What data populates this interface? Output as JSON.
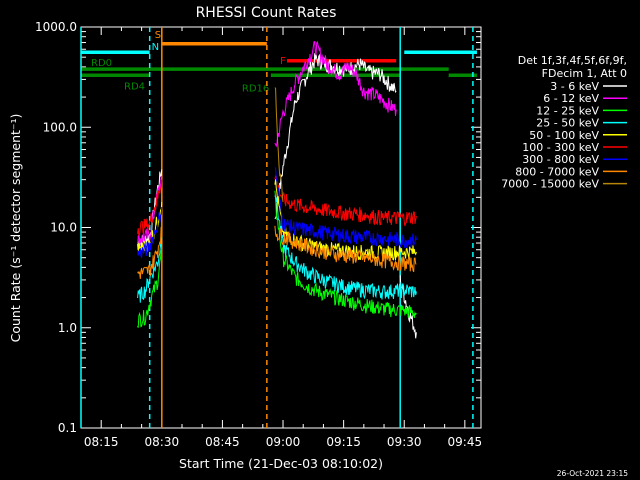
{
  "chart_data": {
    "type": "line",
    "title": "RHESSI Count Rates",
    "xlabel": "Start Time (21-Dec-03 08:10:02)",
    "ylabel": "Count Rate (s⁻¹ detector segment⁻¹)",
    "y_scale": "log",
    "ylim": [
      0.1,
      1000
    ],
    "xlim": [
      "08:10",
      "09:49"
    ],
    "x_ticks": [
      "08:15",
      "08:30",
      "08:45",
      "09:00",
      "09:15",
      "09:30",
      "09:45"
    ],
    "y_ticks": [
      "0.1",
      "1.0",
      "10.0",
      "100.0",
      "1000.0"
    ],
    "timestamp": "26-Oct-2021 23:15",
    "legend": {
      "placement": "right",
      "header_line1": "Det 1f,3f,4f,5f,6f,9f,",
      "header_line2": "FDecim 1, Att 0"
    },
    "series": [
      {
        "name": "3 - 6 keV",
        "color": "#ffffff",
        "segments": [
          [
            [
              "08:24",
              7
            ],
            [
              "08:27",
              8
            ],
            [
              "08:29",
              25
            ],
            [
              "08:30",
              38
            ]
          ],
          [
            [
              "08:58",
              12
            ],
            [
              "09:00",
              40
            ],
            [
              "09:03",
              180
            ],
            [
              "09:06",
              340
            ],
            [
              "09:08",
              480
            ],
            [
              "09:10",
              440
            ],
            [
              "09:13",
              400
            ],
            [
              "09:16",
              380
            ],
            [
              "09:19",
              430
            ],
            [
              "09:21",
              360
            ],
            [
              "09:24",
              340
            ],
            [
              "09:26",
              280
            ],
            [
              "09:28",
              230
            ]
          ],
          [
            [
              "09:29",
              3
            ],
            [
              "09:31",
              1.5
            ],
            [
              "09:33",
              0.9
            ]
          ]
        ]
      },
      {
        "name": "6 - 12 keV",
        "color": "#ff00ff",
        "segments": [
          [
            [
              "08:24",
              7.5
            ],
            [
              "08:27",
              8.5
            ],
            [
              "08:29",
              22
            ],
            [
              "08:30",
              32
            ]
          ],
          [
            [
              "08:58",
              60
            ],
            [
              "09:00",
              140
            ],
            [
              "09:03",
              280
            ],
            [
              "09:06",
              460
            ],
            [
              "09:08",
              650
            ],
            [
              "09:09",
              560
            ],
            [
              "09:11",
              420
            ],
            [
              "09:14",
              340
            ],
            [
              "09:16",
              410
            ],
            [
              "09:18",
              350
            ],
            [
              "09:20",
              230
            ],
            [
              "09:23",
              210
            ],
            [
              "09:26",
              170
            ],
            [
              "09:28",
              150
            ]
          ]
        ]
      },
      {
        "name": "12 - 25 keV",
        "color": "#00ff00",
        "segments": [
          [
            [
              "08:24",
              1.2
            ],
            [
              "08:26",
              1.3
            ],
            [
              "08:27",
              1.8
            ],
            [
              "08:29",
              3
            ],
            [
              "08:30",
              6
            ]
          ],
          [
            [
              "08:58",
              20
            ],
            [
              "08:59",
              9
            ],
            [
              "09:00",
              5
            ],
            [
              "09:03",
              3.2
            ],
            [
              "09:06",
              2.6
            ],
            [
              "09:10",
              2.2
            ],
            [
              "09:15",
              1.9
            ],
            [
              "09:20",
              1.7
            ],
            [
              "09:25",
              1.55
            ],
            [
              "09:30",
              1.5
            ],
            [
              "09:33",
              1.4
            ]
          ]
        ]
      },
      {
        "name": "25 - 50 keV",
        "color": "#00ffff",
        "segments": [
          [
            [
              "08:24",
              2
            ],
            [
              "08:26",
              2.4
            ],
            [
              "08:27",
              3.2
            ],
            [
              "08:29",
              4.5
            ],
            [
              "08:30",
              8
            ]
          ],
          [
            [
              "08:58",
              25
            ],
            [
              "08:59",
              12
            ],
            [
              "09:00",
              6.5
            ],
            [
              "09:03",
              4.5
            ],
            [
              "09:06",
              3.6
            ],
            [
              "09:10",
              3
            ],
            [
              "09:15",
              2.6
            ],
            [
              "09:20",
              2.4
            ],
            [
              "09:25",
              2.3
            ],
            [
              "09:30",
              2.4
            ],
            [
              "09:33",
              2.3
            ]
          ]
        ]
      },
      {
        "name": "50 - 100 keV",
        "color": "#ffff00",
        "segments": [
          [
            [
              "08:24",
              6
            ],
            [
              "08:26",
              6.5
            ],
            [
              "08:27",
              7
            ],
            [
              "08:29",
              12
            ],
            [
              "08:30",
              18
            ]
          ],
          [
            [
              "08:58",
              30
            ],
            [
              "08:59",
              16
            ],
            [
              "09:00",
              9
            ],
            [
              "09:03",
              7.5
            ],
            [
              "09:06",
              6.8
            ],
            [
              "09:10",
              6.2
            ],
            [
              "09:15",
              5.9
            ],
            [
              "09:20",
              5.7
            ],
            [
              "09:25",
              5.6
            ],
            [
              "09:30",
              5.8
            ],
            [
              "09:33",
              5.7
            ]
          ]
        ]
      },
      {
        "name": "100 - 300 keV",
        "color": "#ff0000",
        "segments": [
          [
            [
              "08:24",
              10
            ],
            [
              "08:26",
              10.5
            ],
            [
              "08:27",
              11
            ],
            [
              "08:29",
              20
            ],
            [
              "08:30",
              30
            ]
          ],
          [
            [
              "08:58",
              35
            ],
            [
              "08:59",
              24
            ],
            [
              "09:00",
              19
            ],
            [
              "09:03",
              17
            ],
            [
              "09:06",
              16
            ],
            [
              "09:10",
              15
            ],
            [
              "09:15",
              14
            ],
            [
              "09:20",
              13.5
            ],
            [
              "09:25",
              12.5
            ],
            [
              "09:30",
              12.5
            ],
            [
              "09:33",
              13
            ]
          ]
        ]
      },
      {
        "name": "300 - 800 keV",
        "color": "#0000ff",
        "segments": [
          [
            [
              "08:24",
              5.5
            ],
            [
              "08:26",
              6
            ],
            [
              "08:27",
              6.5
            ],
            [
              "08:29",
              11
            ],
            [
              "08:30",
              16
            ]
          ],
          [
            [
              "08:58",
              40
            ],
            [
              "08:59",
              20
            ],
            [
              "09:00",
              11
            ],
            [
              "09:03",
              10
            ],
            [
              "09:06",
              9.5
            ],
            [
              "09:10",
              9
            ],
            [
              "09:15",
              8.4
            ],
            [
              "09:20",
              8
            ],
            [
              "09:25",
              7.8
            ],
            [
              "09:30",
              7.5
            ],
            [
              "09:33",
              7.5
            ]
          ]
        ]
      },
      {
        "name": "800 - 7000 keV",
        "color": "#ff8800",
        "segments": [
          [
            [
              "08:24",
              3.5
            ],
            [
              "08:26",
              3.6
            ],
            [
              "08:27",
              3.8
            ],
            [
              "08:29",
              6
            ],
            [
              "08:30",
              10
            ]
          ],
          [
            [
              "08:58",
              9
            ],
            [
              "09:00",
              8.2
            ],
            [
              "09:03",
              7.2
            ],
            [
              "09:06",
              6.5
            ],
            [
              "09:10",
              5.8
            ],
            [
              "09:15",
              5.3
            ],
            [
              "09:20",
              5
            ],
            [
              "09:25",
              4.7
            ],
            [
              "09:30",
              4.4
            ],
            [
              "09:33",
              4.3
            ]
          ]
        ]
      },
      {
        "name": "7000 - 15000 keV",
        "color": "#b8860b",
        "segments": [
          [
            [
              "08:58",
              300
            ],
            [
              "08:58.5",
              120
            ],
            [
              "08:59",
              40
            ],
            [
              "09:00",
              18
            ]
          ]
        ]
      }
    ],
    "state_bars": [
      {
        "label": "RD0",
        "color": "#008800",
        "level": 380,
        "start": "08:10",
        "end": "09:41"
      },
      {
        "label": "RD4",
        "color": "#008800",
        "level": 330,
        "start": "08:10",
        "end": "08:27"
      },
      {
        "label": "",
        "color": "#008800",
        "level": 330,
        "start": "09:41",
        "end": "09:48"
      },
      {
        "label": "RD16",
        "color": "#008800",
        "level": 330,
        "start": "08:57",
        "end": "09:29"
      },
      {
        "label": "",
        "color": "#00ffff",
        "level": 560,
        "start": "08:10",
        "end": "08:27"
      },
      {
        "label": "",
        "color": "#00ffff",
        "level": 560,
        "start": "09:30",
        "end": "09:48"
      },
      {
        "label": "S",
        "color": "#ff8800",
        "level": 680,
        "start": "08:30",
        "end": "08:56"
      },
      {
        "label": "F",
        "color": "#ff0000",
        "level": 460,
        "start": "09:01",
        "end": "09:28"
      }
    ],
    "vertical_lines": [
      {
        "x": "08:10",
        "color": "#00ffff",
        "style": "solid",
        "label": ""
      },
      {
        "x": "08:27",
        "color": "#00ffff",
        "style": "dashed",
        "label": "N"
      },
      {
        "x": "08:30",
        "color": "#ff8800",
        "style": "solid",
        "label": ""
      },
      {
        "x": "08:56",
        "color": "#ff8800",
        "style": "dashed",
        "label": ""
      },
      {
        "x": "09:29",
        "color": "#00ffff",
        "style": "solid",
        "label": ""
      },
      {
        "x": "09:47",
        "color": "#00ffff",
        "style": "dashed",
        "label": ""
      }
    ]
  }
}
